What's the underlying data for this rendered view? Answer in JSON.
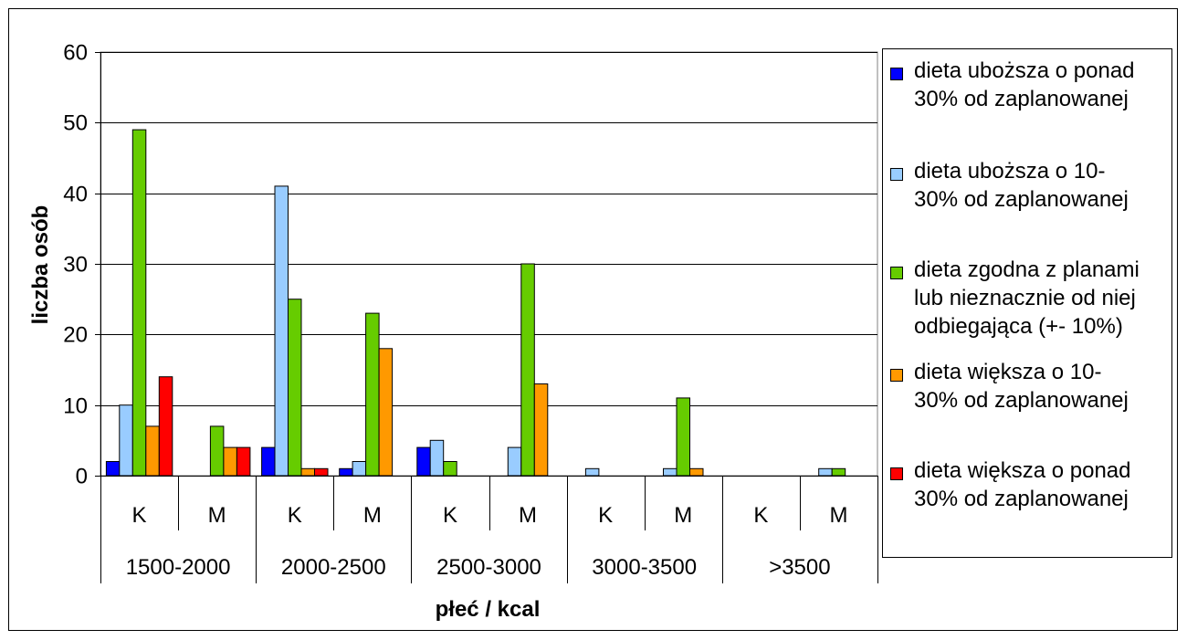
{
  "chart_data": {
    "type": "bar",
    "title": "",
    "xlabel": "płeć / kcal",
    "ylabel": "liczba osób",
    "ylim": [
      0,
      60
    ],
    "yticks": [
      0,
      10,
      20,
      30,
      40,
      50,
      60
    ],
    "grid": true,
    "legend_position": "right",
    "groups": [
      "1500-2000",
      "2000-2500",
      "2500-3000",
      "3000-3500",
      ">3500"
    ],
    "categories": [
      "K",
      "M",
      "K",
      "M",
      "K",
      "M",
      "K",
      "M",
      "K",
      "M"
    ],
    "series": [
      {
        "name": "dieta uboższa o ponad\n30% od zaplanowanej",
        "color": "#0000FF",
        "values": [
          2,
          0,
          4,
          1,
          4,
          0,
          0,
          0,
          0,
          0
        ]
      },
      {
        "name": "dieta uboższa o 10-\n30% od zaplanowanej",
        "color": "#99CCFF",
        "values": [
          10,
          0,
          41,
          2,
          5,
          4,
          1,
          1,
          0,
          1
        ]
      },
      {
        "name": "dieta zgodna z planami\nlub nieznacznie od niej\nodbiegająca (+- 10%)",
        "color": "#66CC00",
        "values": [
          49,
          7,
          25,
          23,
          2,
          30,
          0,
          11,
          0,
          1
        ]
      },
      {
        "name": "dieta większa o 10-\n30% od zaplanowanej",
        "color": "#FF9900",
        "values": [
          7,
          4,
          1,
          18,
          0,
          13,
          0,
          1,
          0,
          0
        ]
      },
      {
        "name": "dieta większa o ponad\n30% od zaplanowanej",
        "color": "#FF0000",
        "values": [
          14,
          4,
          1,
          0,
          0,
          0,
          0,
          0,
          0,
          0
        ]
      }
    ]
  }
}
